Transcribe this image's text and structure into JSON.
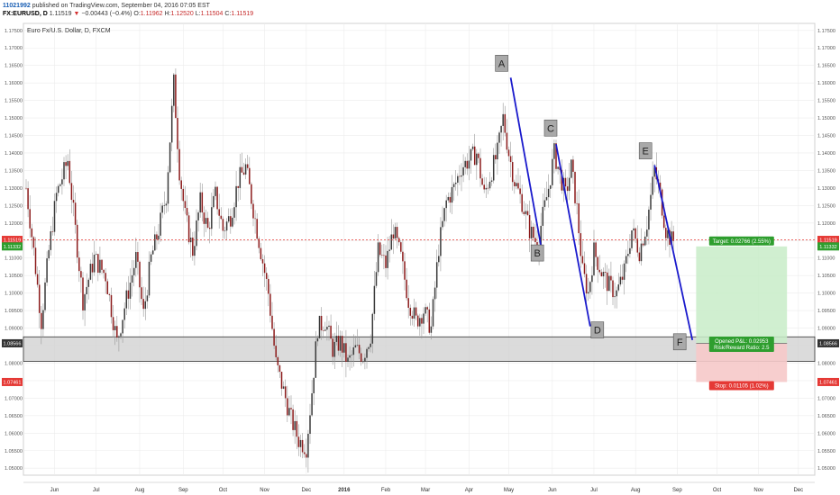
{
  "header": {
    "user": "11021992",
    "published": "published on TradingView.com, September 04, 2016 07:05 EST",
    "symbol": "FX:EURUSD, D",
    "last": "1.11519",
    "arrow": "▼",
    "change": "−0.00443 (−0.4%)",
    "o_label": "O:",
    "o": "1.11962",
    "h_label": "H:",
    "h": "1.12520",
    "l_label": "L:",
    "l": "1.11504",
    "c_label": "C:",
    "c": "1.11519"
  },
  "colors": {
    "up": "#3a3a3a",
    "down": "#8b1a1a",
    "wick": "#999999",
    "pattern": "#1a1acc",
    "price_line": "#e53935",
    "target_fill": "#c8ecc8",
    "stop_fill": "#f6c9c9",
    "target_label": "#2e9e2e",
    "stop_label": "#e53935",
    "grid": "#ececec"
  },
  "chart_data": {
    "type": "candlestick",
    "title": "Euro Fx/U.S. Dollar, D, FXCM",
    "y_range": [
      1.048,
      1.177
    ],
    "y_ticks": [
      "1.17500",
      "1.17000",
      "1.16500",
      "1.16000",
      "1.15500",
      "1.15000",
      "1.14500",
      "1.14000",
      "1.13500",
      "1.13000",
      "1.12500",
      "1.12000",
      "1.11500",
      "1.11000",
      "1.10500",
      "1.10000",
      "1.09500",
      "1.09000",
      "1.08500",
      "1.08000",
      "1.07500",
      "1.07000",
      "1.06500",
      "1.06000",
      "1.05500",
      "1.05000"
    ],
    "x_ticks": [
      {
        "label": "Jun",
        "idx": 15
      },
      {
        "label": "Jul",
        "idx": 37
      },
      {
        "label": "Aug",
        "idx": 60
      },
      {
        "label": "Sep",
        "idx": 83
      },
      {
        "label": "Oct",
        "idx": 104
      },
      {
        "label": "Nov",
        "idx": 126
      },
      {
        "label": "Dec",
        "idx": 148
      },
      {
        "label": "2016",
        "idx": 168
      },
      {
        "label": "Feb",
        "idx": 190
      },
      {
        "label": "Mar",
        "idx": 211
      },
      {
        "label": "Apr",
        "idx": 234
      },
      {
        "label": "May",
        "idx": 255
      },
      {
        "label": "Jun",
        "idx": 278
      },
      {
        "label": "Jul",
        "idx": 300
      },
      {
        "label": "Aug",
        "idx": 322
      },
      {
        "label": "Sep",
        "idx": 344
      },
      {
        "label": "Oct",
        "idx": 365
      },
      {
        "label": "Nov",
        "idx": 387
      },
      {
        "label": "Dec",
        "idx": 408
      }
    ],
    "close_keyframes": [
      [
        0,
        1.13
      ],
      [
        4,
        1.112
      ],
      [
        8,
        1.092
      ],
      [
        12,
        1.112
      ],
      [
        16,
        1.128
      ],
      [
        22,
        1.138
      ],
      [
        26,
        1.118
      ],
      [
        30,
        1.098
      ],
      [
        36,
        1.11
      ],
      [
        42,
        1.105
      ],
      [
        48,
        1.086
      ],
      [
        52,
        1.096
      ],
      [
        58,
        1.11
      ],
      [
        62,
        1.094
      ],
      [
        66,
        1.11
      ],
      [
        70,
        1.118
      ],
      [
        74,
        1.128
      ],
      [
        78,
        1.16
      ],
      [
        81,
        1.135
      ],
      [
        84,
        1.122
      ],
      [
        88,
        1.112
      ],
      [
        92,
        1.126
      ],
      [
        96,
        1.118
      ],
      [
        100,
        1.128
      ],
      [
        104,
        1.118
      ],
      [
        108,
        1.122
      ],
      [
        112,
        1.132
      ],
      [
        116,
        1.136
      ],
      [
        120,
        1.124
      ],
      [
        124,
        1.112
      ],
      [
        128,
        1.1
      ],
      [
        132,
        1.08
      ],
      [
        136,
        1.072
      ],
      [
        140,
        1.064
      ],
      [
        144,
        1.058
      ],
      [
        148,
        1.056
      ],
      [
        151,
        1.072
      ],
      [
        154,
        1.09
      ],
      [
        158,
        1.092
      ],
      [
        162,
        1.084
      ],
      [
        166,
        1.086
      ],
      [
        170,
        1.08
      ],
      [
        174,
        1.084
      ],
      [
        178,
        1.082
      ],
      [
        182,
        1.088
      ],
      [
        186,
        1.112
      ],
      [
        190,
        1.108
      ],
      [
        194,
        1.118
      ],
      [
        198,
        1.11
      ],
      [
        202,
        1.098
      ],
      [
        206,
        1.092
      ],
      [
        210,
        1.095
      ],
      [
        214,
        1.09
      ],
      [
        218,
        1.113
      ],
      [
        222,
        1.126
      ],
      [
        226,
        1.13
      ],
      [
        230,
        1.136
      ],
      [
        234,
        1.138
      ],
      [
        238,
        1.14
      ],
      [
        242,
        1.128
      ],
      [
        246,
        1.135
      ],
      [
        249,
        1.14
      ],
      [
        252,
        1.15
      ],
      [
        255,
        1.14
      ],
      [
        258,
        1.132
      ],
      [
        262,
        1.126
      ],
      [
        266,
        1.118
      ],
      [
        270,
        1.114
      ],
      [
        273,
        1.122
      ],
      [
        276,
        1.13
      ],
      [
        279,
        1.14
      ],
      [
        282,
        1.134
      ],
      [
        285,
        1.128
      ],
      [
        288,
        1.136
      ],
      [
        291,
        1.124
      ],
      [
        294,
        1.106
      ],
      [
        297,
        1.1
      ],
      [
        300,
        1.112
      ],
      [
        304,
        1.106
      ],
      [
        308,
        1.102
      ],
      [
        312,
        1.1
      ],
      [
        316,
        1.106
      ],
      [
        320,
        1.118
      ],
      [
        324,
        1.112
      ],
      [
        328,
        1.12
      ],
      [
        332,
        1.135
      ],
      [
        335,
        1.128
      ],
      [
        338,
        1.118
      ],
      [
        341,
        1.115
      ]
    ],
    "range_start_idx": 0,
    "range_end_idx": 342,
    "current_price": {
      "value": 1.11519,
      "label": "1.11519"
    },
    "target_level": {
      "value": 1.11332,
      "label": "1.11332"
    },
    "entry_level": {
      "value": 1.08566,
      "label": "1.08566"
    },
    "stop_level": {
      "value": 1.07461,
      "label": "1.07461"
    },
    "support_zone": [
      1.0805,
      1.0875
    ],
    "pattern": {
      "points": [
        {
          "label": "A",
          "idx": 256,
          "price": 1.1615
        },
        {
          "label": "B",
          "idx": 272,
          "price": 1.1135
        },
        {
          "label": "C",
          "idx": 280,
          "price": 1.1425
        },
        {
          "label": "D",
          "idx": 298,
          "price": 1.0905
        },
        {
          "label": "E",
          "idx": 332,
          "price": 1.1365
        },
        {
          "label": "F",
          "idx": 352,
          "price": 1.0866
        }
      ]
    },
    "position": {
      "start_idx": 354,
      "end_idx": 402,
      "target_text": "Target: 0.02766 (2.55%)",
      "pnl_text": "Opened P&L: 0.02953",
      "rr_text": "Risk/Reward Ratio: 2.5",
      "stop_text": "Stop: 0.01105 (1.02%)"
    }
  }
}
